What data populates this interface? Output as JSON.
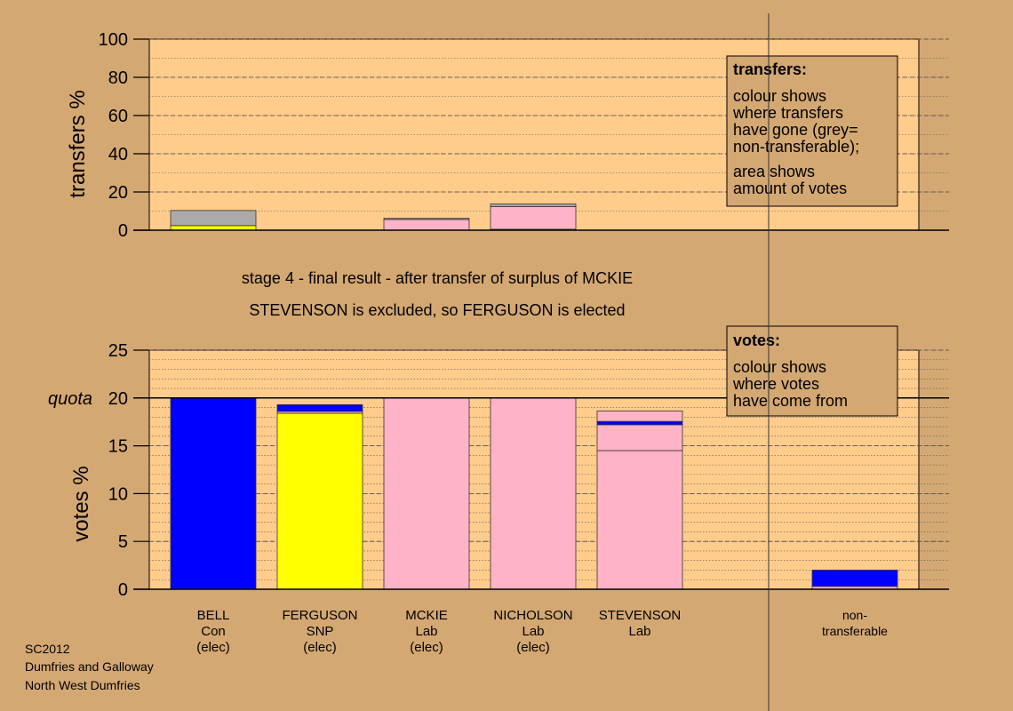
{
  "chart_data": [
    {
      "type": "bar",
      "ylabel": "transfers %",
      "ylim": [
        0,
        100
      ],
      "yticks": [
        0,
        20,
        40,
        60,
        80,
        100
      ],
      "categories": [
        "BELL",
        "FERGUSON",
        "MCKIE",
        "NICHOLSON",
        "STEVENSON"
      ],
      "stack_order": [
        "yellow",
        "grey",
        "pink"
      ],
      "bars": [
        {
          "category": "BELL",
          "segments": [
            {
              "color": "#ffff00",
              "value": 2.4
            },
            {
              "color": "#aaaaaa",
              "value": 7.9
            }
          ]
        },
        {
          "category": "FERGUSON",
          "segments": []
        },
        {
          "category": "MCKIE",
          "segments": [
            {
              "color": "#ffb3c6",
              "value": 5.6
            },
            {
              "color": "#aaaaaa",
              "value": 0.6
            }
          ]
        },
        {
          "category": "NICHOLSON",
          "segments": [
            {
              "color": "#ffff00",
              "value": 0.5
            },
            {
              "color": "#ffb3c6",
              "value": 11.9
            },
            {
              "color": "#aaaaaa",
              "value": 1.3
            }
          ]
        },
        {
          "category": "STEVENSON",
          "segments": []
        }
      ],
      "legend": {
        "title": "transfers:",
        "lines": [
          "colour shows",
          "where transfers",
          "have gone (grey=",
          "non-transferable);"
        ],
        "lines2": [
          "area shows",
          "amount of votes"
        ]
      }
    },
    {
      "type": "bar",
      "ylabel": "votes %",
      "ylim": [
        0,
        25
      ],
      "yticks": [
        0,
        5,
        10,
        15,
        20,
        25
      ],
      "quota": 20,
      "quota_label": "quota",
      "categories": [
        "BELL",
        "FERGUSON",
        "MCKIE",
        "NICHOLSON",
        "STEVENSON",
        "non-transferable"
      ],
      "bars": [
        {
          "category": "BELL",
          "segments": [
            {
              "color": "#0000ff",
              "value": 20
            }
          ]
        },
        {
          "category": "FERGUSON",
          "segments": [
            {
              "color": "#ffff00",
              "value": 18.4
            },
            {
              "color": "#ffb3c6",
              "value": 0.2
            },
            {
              "color": "#0000ff",
              "value": 0.7
            }
          ]
        },
        {
          "category": "MCKIE",
          "segments": [
            {
              "color": "#ffb3c6",
              "value": 20
            }
          ]
        },
        {
          "category": "NICHOLSON",
          "segments": [
            {
              "color": "#ffb3c6",
              "value": 20
            }
          ]
        },
        {
          "category": "STEVENSON",
          "segments": [
            {
              "color": "#ffb3c6",
              "value": 14.5
            },
            {
              "color": "#ffb3c6",
              "value": 2.7
            },
            {
              "color": "#0000ff",
              "value": 0.35
            },
            {
              "color": "#ffb3c6",
              "value": 1.1
            }
          ]
        },
        {
          "category": "non-transferable",
          "segments": [
            {
              "color": "#ffb3c6",
              "value": 0.3
            },
            {
              "color": "#0000ff",
              "value": 1.7
            }
          ]
        }
      ],
      "legend": {
        "title": "votes:",
        "lines": [
          "colour shows",
          "where votes",
          "have come from"
        ]
      }
    }
  ],
  "x_labels": [
    [
      "BELL",
      "Con",
      "(elec)"
    ],
    [
      "FERGUSON",
      "SNP",
      "(elec)"
    ],
    [
      "MCKIE",
      "Lab",
      "(elec)"
    ],
    [
      "NICHOLSON",
      "Lab",
      "(elec)"
    ],
    [
      "STEVENSON",
      "Lab"
    ],
    [
      "non-",
      "transferable"
    ]
  ],
  "stage_title": "stage 4 - final result - after transfer of surplus of MCKIE",
  "stage_subtitle": "STEVENSON is excluded, so FERGUSON is elected",
  "footer": [
    "SC2012",
    "Dumfries and Galloway",
    "North West Dumfries"
  ],
  "colors": {
    "background": "#d4a873",
    "plot_background": "#ffcc8c",
    "con": "#0000ff",
    "snp": "#ffff00",
    "lab": "#ffb3c6",
    "non_transferable": "#aaaaaa"
  }
}
